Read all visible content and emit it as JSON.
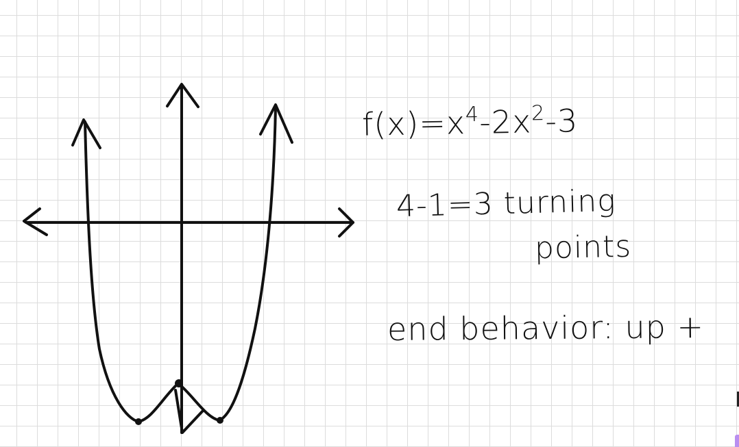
{
  "notes": {
    "equation_prefix": "f(x)=x",
    "equation_exp1": "4",
    "equation_mid": "-2x",
    "equation_exp2": "2",
    "equation_suffix": "-3",
    "turning_points_line1": "4-1=3 turning",
    "turning_points_line2": "points",
    "end_behavior": "end behavior: up +"
  },
  "colors": {
    "ink": "#111111",
    "grid": "#dcdcdc",
    "accent": "#b98ef0"
  }
}
